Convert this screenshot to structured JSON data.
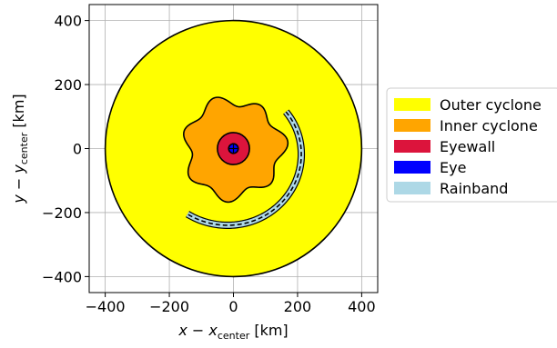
{
  "chart_data": {
    "type": "diagram",
    "xlabel": {
      "main": "x − x",
      "sub": "center",
      "unit": " [km]"
    },
    "ylabel": {
      "main": "y − y",
      "sub": "center",
      "unit": " [km]"
    },
    "xlim": [
      -450,
      450
    ],
    "ylim": [
      -450,
      450
    ],
    "xticks": [
      -400,
      -200,
      0,
      200,
      400
    ],
    "yticks": [
      -400,
      -200,
      0,
      200,
      400
    ],
    "xtick_labels": [
      "−400",
      "−200",
      "0",
      "200",
      "400"
    ],
    "ytick_labels": [
      "−400",
      "−200",
      "0",
      "200",
      "400"
    ],
    "grid": true,
    "legend_position": "right",
    "regions": [
      {
        "name": "Outer cyclone",
        "shape": "circle",
        "radius_km": 400,
        "color": "#ffff00"
      },
      {
        "name": "Inner cyclone",
        "shape": "wavy-circle",
        "radius_km": 150,
        "wave_amplitude_km": 15,
        "lobes": 7,
        "color": "#ffa500"
      },
      {
        "name": "Eyewall",
        "shape": "circle",
        "radius_km": 50,
        "color": "#dc143c"
      },
      {
        "name": "Eye",
        "shape": "circle",
        "radius_km": 15,
        "color": "#0000ff"
      },
      {
        "name": "Rainband",
        "shape": "spiral-arc",
        "start_angle_deg": 35,
        "end_angle_deg": -125,
        "start_radius_km": 200,
        "end_radius_km": 250,
        "width_km": 16,
        "color": "#add8e6"
      }
    ],
    "center_marker": {
      "x": 0,
      "y": 0,
      "symbol": "+"
    }
  }
}
